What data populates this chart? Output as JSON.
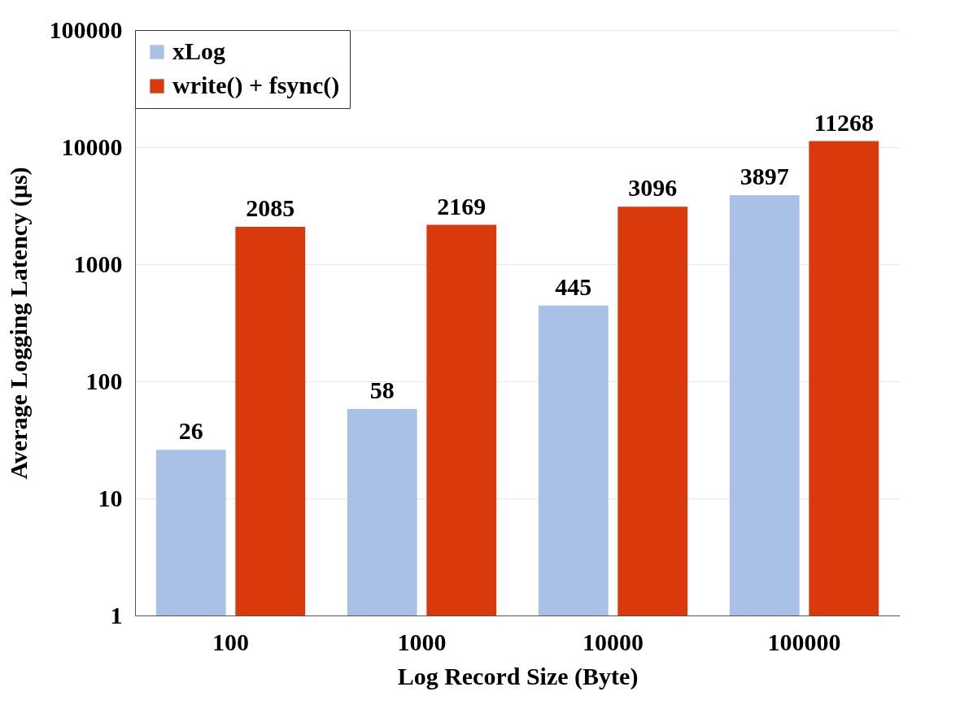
{
  "chart_data": {
    "type": "bar",
    "xlabel": "Log Record Size (Byte)",
    "ylabel": "Average Logging Latency (µs)",
    "categories": [
      "100",
      "1000",
      "10000",
      "100000"
    ],
    "series": [
      {
        "name": "xLog",
        "color": "#a9c1e6",
        "values": [
          26,
          58,
          445,
          3897
        ]
      },
      {
        "name": "write() + fsync()",
        "color": "#d9390b",
        "values": [
          2085,
          2169,
          3096,
          11268
        ]
      }
    ],
    "log": true,
    "ylim": [
      1,
      100000
    ],
    "yticks": [
      1,
      10,
      100,
      1000,
      10000,
      100000
    ],
    "grid": "y",
    "legend": "top left",
    "data_labels": true
  }
}
